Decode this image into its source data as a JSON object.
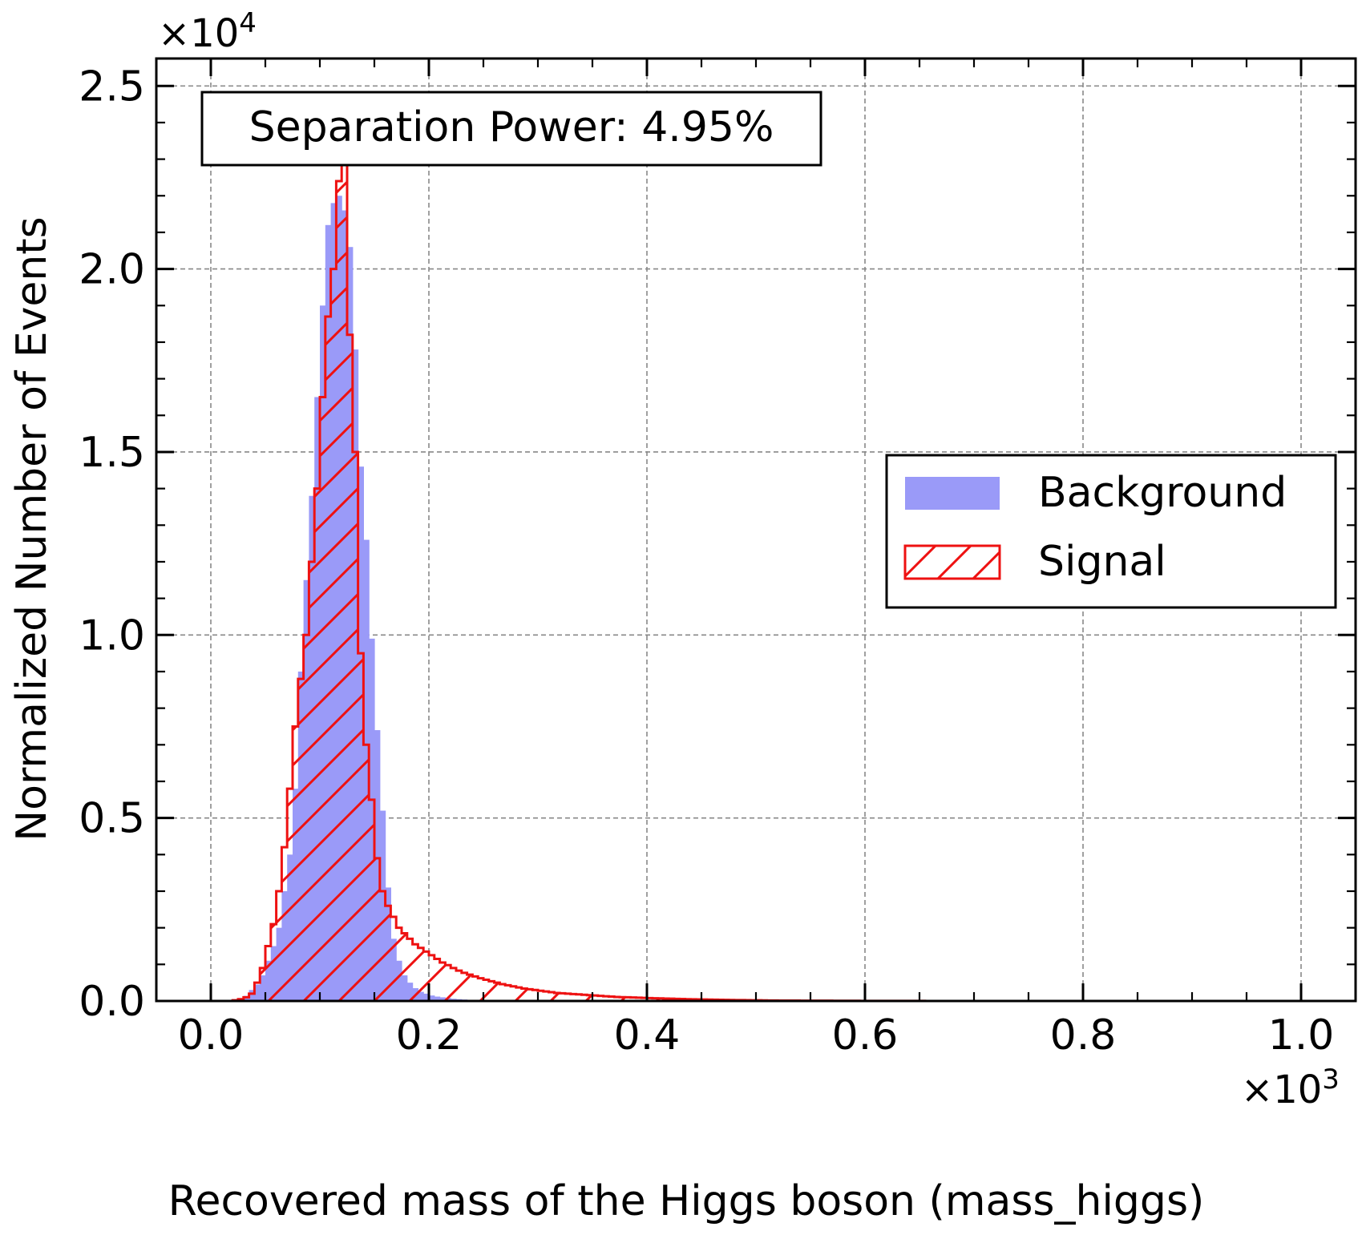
{
  "chart_data": {
    "type": "histogram",
    "xlabel": "Recovered mass of the Higgs boson (mass_higgs)",
    "ylabel": "Normalized Number of Events",
    "x_scale_label": "×10",
    "x_scale_exp": "3",
    "y_scale_label": "×10",
    "y_scale_exp": "4",
    "xlim": [
      -0.05,
      1.05
    ],
    "ylim": [
      0,
      2.575
    ],
    "xticks": [
      0.0,
      0.2,
      0.4,
      0.6,
      0.8,
      1.0
    ],
    "xtick_labels": [
      "0.0",
      "0.2",
      "0.4",
      "0.6",
      "0.8",
      "1.0"
    ],
    "yticks": [
      0.0,
      0.5,
      1.0,
      1.5,
      2.0,
      2.5
    ],
    "ytick_labels": [
      "0.0",
      "0.5",
      "1.0",
      "1.5",
      "2.0",
      "2.5"
    ],
    "grid": true,
    "annotation": "Separation Power: 4.95%",
    "legend": {
      "placement": "center-right",
      "entries": [
        "Background",
        "Signal"
      ]
    },
    "colors": {
      "background": "#9a9af8",
      "signal": "#ee1111"
    },
    "bin_width": 0.005,
    "series": [
      {
        "name": "Background",
        "style": "filled",
        "bins_start": 0.015,
        "values": [
          0.002,
          0.005,
          0.008,
          0.014,
          0.03,
          0.045,
          0.07,
          0.11,
          0.15,
          0.2,
          0.3,
          0.4,
          0.58,
          0.9,
          1.15,
          1.38,
          1.65,
          1.9,
          2.12,
          2.18,
          2.2,
          2.16,
          2.06,
          1.78,
          1.46,
          1.26,
          0.99,
          0.74,
          0.52,
          0.31,
          0.17,
          0.11,
          0.07,
          0.05,
          0.035,
          0.025,
          0.02,
          0.015,
          0.012,
          0.01,
          0.008,
          0.006,
          0.005,
          0.004,
          0.003,
          0.002
        ]
      },
      {
        "name": "Signal",
        "style": "hatched-step",
        "bins_start": 0.02,
        "values": [
          0.002,
          0.005,
          0.01,
          0.02,
          0.05,
          0.09,
          0.15,
          0.21,
          0.3,
          0.42,
          0.58,
          0.75,
          0.88,
          1.0,
          1.2,
          1.4,
          1.65,
          1.87,
          2.0,
          2.24,
          2.3,
          1.82,
          1.5,
          0.95,
          0.7,
          0.55,
          0.39,
          0.3,
          0.26,
          0.23,
          0.2,
          0.185,
          0.17,
          0.155,
          0.145,
          0.135,
          0.125,
          0.115,
          0.105,
          0.098,
          0.09,
          0.083,
          0.077,
          0.072,
          0.067,
          0.062,
          0.058,
          0.054,
          0.05,
          0.046,
          0.043,
          0.04,
          0.037,
          0.034,
          0.032,
          0.03,
          0.028,
          0.026,
          0.024,
          0.022,
          0.021,
          0.02,
          0.019,
          0.018,
          0.017,
          0.016,
          0.015,
          0.014,
          0.013,
          0.012,
          0.011,
          0.0105,
          0.01,
          0.0095,
          0.009,
          0.0085,
          0.008,
          0.0075,
          0.007,
          0.0066,
          0.0062,
          0.0058,
          0.0054,
          0.005,
          0.0047,
          0.0044,
          0.0041,
          0.0038,
          0.0035,
          0.0032,
          0.003,
          0.0028,
          0.0026,
          0.0024,
          0.0022,
          0.002,
          0.0018,
          0.0016,
          0.0014,
          0.0013,
          0.0012,
          0.0011,
          0.001,
          0.001,
          0.0009,
          0.0009,
          0.0008,
          0.0008,
          0.0007,
          0.0007,
          0.0006,
          0.0006,
          0.0005,
          0.0005,
          0.0005,
          0.0004,
          0.0004,
          0.0004,
          0.0003,
          0.0003,
          0.0003,
          0.0003,
          0.0002,
          0.0002,
          0.0002,
          0.0002,
          0.0002,
          0.0001,
          0.0001,
          0.0001
        ]
      }
    ]
  }
}
